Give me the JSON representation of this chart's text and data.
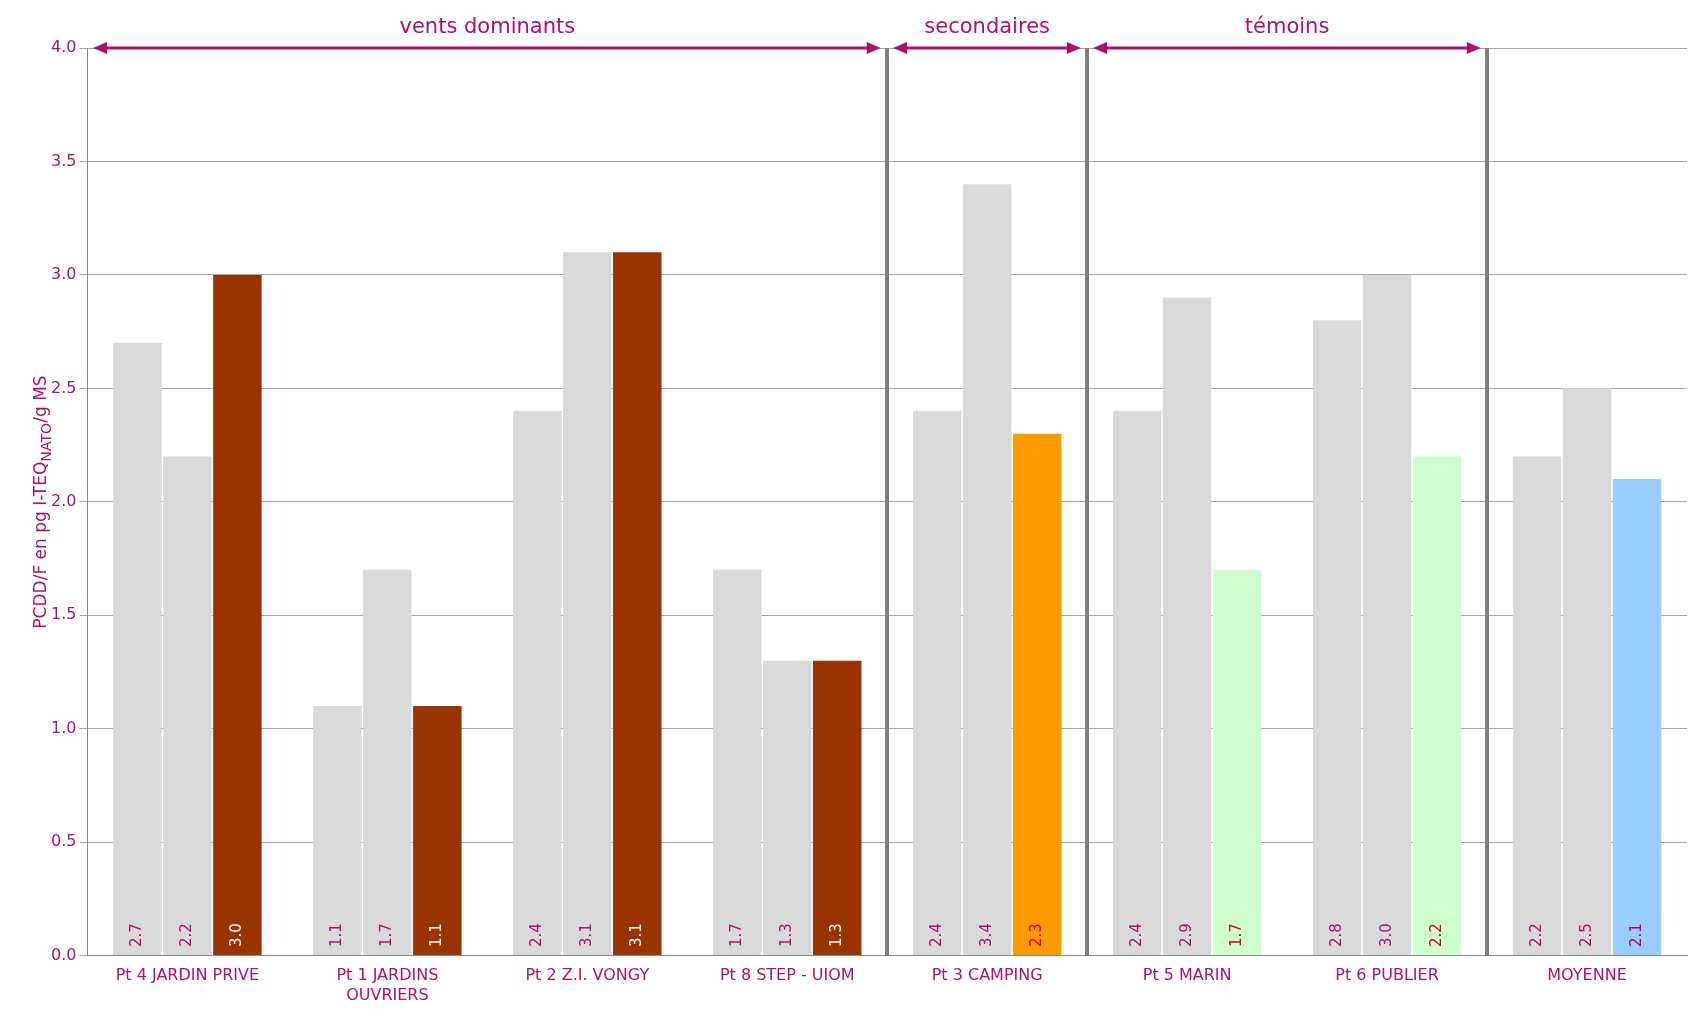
{
  "chart_data": {
    "type": "bar",
    "ylabel": "PCDD/F en pg I-TEQ$_{NATO}$/g MS",
    "categories": [
      "Pt 4 JARDIN PRIVE",
      "Pt 1 JARDINS OUVRIERS",
      "Pt 2 Z.I. VONGY",
      "Pt 8 STEP - UIOM",
      "Pt 3 CAMPING",
      "Pt 5 MARIN",
      "Pt 6 PUBLIER",
      "MOYENNE"
    ],
    "series": [
      {
        "color": "#d9d9d9",
        "values": [
          2.7,
          1.1,
          2.4,
          1.7,
          2.4,
          2.4,
          2.8,
          2.2
        ],
        "value_labels": [
          "2.7",
          "1.1",
          "2.4",
          "1.7",
          "2.4",
          "2.4",
          "2.8",
          "2.2"
        ]
      },
      {
        "color": "#d9d9d9",
        "values": [
          2.2,
          1.7,
          3.1,
          1.3,
          3.4,
          2.9,
          3.0,
          2.5
        ],
        "value_labels": [
          "2.2",
          "1.7",
          "3.1",
          "1.3",
          "3.4",
          "2.9",
          "3.0",
          "2.5"
        ]
      },
      {
        "colors": [
          "#993300",
          "#993300",
          "#993300",
          "#993300",
          "#ff9900",
          "#ccffcc",
          "#ccffcc",
          "#99ccff"
        ],
        "values": [
          3.0,
          1.1,
          3.1,
          1.3,
          2.3,
          1.7,
          2.2,
          2.1
        ],
        "value_labels": [
          "3.0",
          "1.1",
          "3.1",
          "1.3",
          "2.3",
          "1.7",
          "2.2",
          "2.1"
        ]
      }
    ],
    "ylim": [
      0,
      4
    ],
    "yticks": [
      {
        "value": 0,
        "label": "0.0"
      },
      {
        "value": 0.5,
        "label": "0.5"
      },
      {
        "value": 1,
        "label": "1.0"
      },
      {
        "value": 1.5,
        "label": "1.5"
      },
      {
        "value": 2,
        "label": "2.0"
      },
      {
        "value": 2.5,
        "label": "2.5"
      },
      {
        "value": 3,
        "label": "3.0"
      },
      {
        "value": 3.5,
        "label": "3.5"
      },
      {
        "value": 4,
        "label": "4.0"
      }
    ],
    "grid": "y",
    "legend": false,
    "annotations": [
      "vents dominants",
      "secondaires",
      "témoins"
    ]
  }
}
